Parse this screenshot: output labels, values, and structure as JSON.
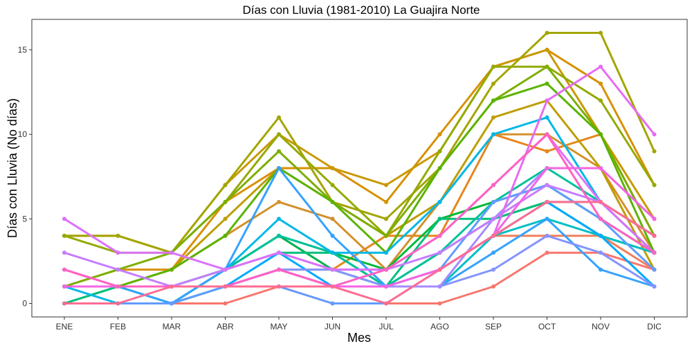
{
  "chart_data": {
    "type": "line",
    "title": "Días con Lluvia (1981-2010)  La Guajira Norte",
    "xlabel": "Mes",
    "ylabel": "Días con Lluvia (No días)",
    "categories": [
      "ENE",
      "FEB",
      "MAR",
      "ABR",
      "MAY",
      "JUN",
      "JUL",
      "AGO",
      "SEP",
      "OCT",
      "NOV",
      "DIC"
    ],
    "ylim": [
      -0.8,
      16.8
    ],
    "yticks": [
      0,
      5,
      10,
      15
    ],
    "grid": false,
    "legend": "none",
    "series": [
      {
        "color": "#F8766D",
        "values": [
          0,
          0,
          0,
          0,
          1,
          0,
          0,
          0,
          1,
          3,
          3,
          2
        ]
      },
      {
        "color": "#F07F5B",
        "values": [
          1,
          1,
          1,
          1,
          1,
          1,
          1,
          2,
          4,
          4,
          4,
          2
        ]
      },
      {
        "color": "#E7861B",
        "values": [
          0,
          0,
          0,
          1,
          2,
          2,
          4,
          4,
          10,
          9,
          10,
          4
        ]
      },
      {
        "color": "#D3902A",
        "values": [
          1,
          1,
          2,
          4,
          6,
          5,
          2,
          6,
          10,
          10,
          8,
          3
        ]
      },
      {
        "color": "#D89000",
        "values": [
          1,
          2,
          2,
          6,
          8,
          8,
          6,
          10,
          14,
          15,
          13,
          7
        ]
      },
      {
        "color": "#C99800",
        "values": [
          4,
          4,
          3,
          7,
          10,
          8,
          7,
          9,
          14,
          15,
          10,
          5
        ]
      },
      {
        "color": "#BD9D00",
        "values": [
          1,
          1,
          2,
          5,
          8,
          6,
          4,
          6,
          11,
          12,
          8,
          2
        ]
      },
      {
        "color": "#A3A500",
        "values": [
          4,
          4,
          3,
          7,
          11,
          6,
          5,
          8,
          13,
          16,
          16,
          9
        ]
      },
      {
        "color": "#93AA00",
        "values": [
          4,
          3,
          3,
          6,
          10,
          7,
          4,
          9,
          14,
          14,
          12,
          7
        ]
      },
      {
        "color": "#7CAE00",
        "values": [
          1,
          2,
          3,
          6,
          9,
          6,
          4,
          8,
          12,
          14,
          10,
          4
        ]
      },
      {
        "color": "#5BB300",
        "values": [
          1,
          1,
          2,
          4,
          8,
          6,
          3,
          8,
          12,
          13,
          10,
          3
        ]
      },
      {
        "color": "#00BA38",
        "values": [
          0,
          1,
          1,
          2,
          4,
          3,
          2,
          5,
          6,
          7,
          5,
          3
        ]
      },
      {
        "color": "#00B050",
        "values": [
          1,
          1,
          0,
          2,
          4,
          2,
          1,
          3,
          5,
          6,
          4,
          3
        ]
      },
      {
        "color": "#00BF7D",
        "values": [
          0,
          1,
          1,
          2,
          3,
          3,
          1,
          5,
          5,
          6,
          6,
          4
        ]
      },
      {
        "color": "#00C19A",
        "values": [
          1,
          1,
          0,
          2,
          4,
          3,
          1,
          3,
          6,
          8,
          6,
          3
        ]
      },
      {
        "color": "#00BFC4",
        "values": [
          1,
          1,
          0,
          1,
          2,
          1,
          1,
          1,
          4,
          5,
          4,
          3
        ]
      },
      {
        "color": "#00B8E7",
        "values": [
          1,
          0,
          0,
          2,
          5,
          3,
          3,
          6,
          10,
          11,
          6,
          3
        ]
      },
      {
        "color": "#00A9FF",
        "values": [
          0,
          0,
          0,
          1,
          3,
          1,
          1,
          2,
          4,
          6,
          4,
          1
        ]
      },
      {
        "color": "#35A2FF",
        "values": [
          1,
          1,
          0,
          2,
          8,
          4,
          1,
          1,
          3,
          5,
          2,
          1
        ]
      },
      {
        "color": "#619CFF",
        "values": [
          0,
          0,
          0,
          1,
          1,
          0,
          0,
          2,
          6,
          7,
          5,
          2
        ]
      },
      {
        "color": "#8494FF",
        "values": [
          1,
          1,
          1,
          1,
          2,
          2,
          1,
          1,
          2,
          4,
          3,
          1
        ]
      },
      {
        "color": "#A58AFF",
        "values": [
          1,
          1,
          1,
          1,
          1,
          1,
          1,
          1,
          5,
          8,
          8,
          5
        ]
      },
      {
        "color": "#C77CFF",
        "values": [
          3,
          2,
          1,
          2,
          3,
          2,
          2,
          3,
          5,
          7,
          6,
          4
        ]
      },
      {
        "color": "#DC71FA",
        "values": [
          5,
          3,
          3,
          2,
          3,
          2,
          2,
          4,
          7,
          10,
          6,
          3
        ]
      },
      {
        "color": "#E76BF3",
        "values": [
          2,
          1,
          1,
          1,
          2,
          1,
          1,
          2,
          4,
          12,
          14,
          10
        ]
      },
      {
        "color": "#F564E3",
        "values": [
          1,
          1,
          1,
          1,
          2,
          1,
          1,
          2,
          4,
          8,
          8,
          5
        ]
      },
      {
        "color": "#FF61C3",
        "values": [
          2,
          1,
          1,
          1,
          2,
          1,
          2,
          4,
          7,
          10,
          5,
          3
        ]
      },
      {
        "color": "#FF6C91",
        "values": [
          0,
          0,
          1,
          1,
          1,
          1,
          0,
          2,
          4,
          6,
          6,
          4
        ]
      }
    ]
  }
}
